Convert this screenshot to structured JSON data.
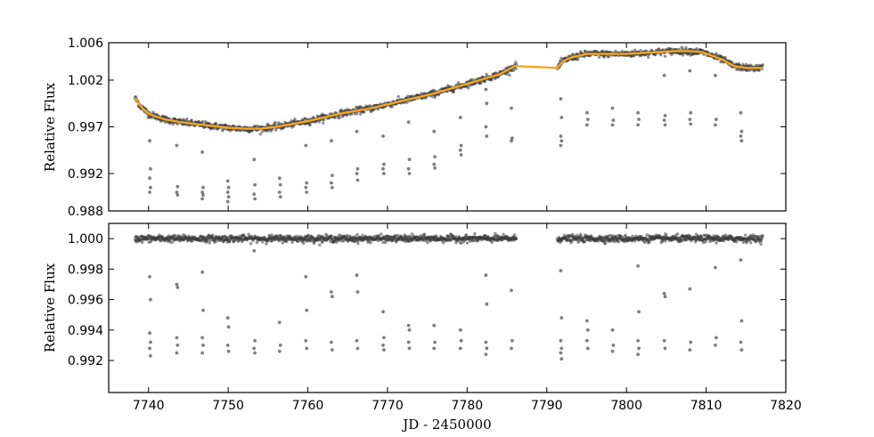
{
  "chart_data": [
    {
      "type": "scatter",
      "panel": "top",
      "xlabel": "",
      "ylabel": "Relative Flux",
      "xlim": [
        7735,
        7820
      ],
      "ylim": [
        0.988,
        1.006
      ],
      "yticks": [
        "0.988",
        "0.992",
        "0.997",
        "1.002",
        "1.006"
      ],
      "ytick_values": [
        0.988,
        0.992,
        0.997,
        1.002,
        1.006
      ],
      "point_color": "#3a3a3a",
      "trend_color": "#f5a623",
      "trend_curve": {
        "x": [
          7738.3,
          7739,
          7740,
          7742,
          7744,
          7746,
          7748,
          7750,
          7752,
          7754,
          7756,
          7758,
          7760,
          7762,
          7764,
          7766,
          7768,
          7770,
          7772,
          7774,
          7776,
          7778,
          7780,
          7782,
          7784,
          7786,
          7791.3,
          7792,
          7793,
          7794,
          7795,
          7796,
          7798,
          7800,
          7802,
          7804,
          7806,
          7808,
          7809.5,
          7810.5,
          7812,
          7813.5,
          7815,
          7817.1
        ],
        "y": [
          1.0001,
          0.9992,
          0.9984,
          0.9978,
          0.9975,
          0.9973,
          0.9971,
          0.9969,
          0.9968,
          0.9968,
          0.997,
          0.9973,
          0.9976,
          0.998,
          0.9984,
          0.9987,
          0.999,
          0.9994,
          0.9998,
          1.0002,
          1.0006,
          1.0011,
          1.0016,
          1.0021,
          1.0026,
          1.0035,
          1.0033,
          1.004,
          1.0044,
          1.0046,
          1.0048,
          1.0048,
          1.0048,
          1.0048,
          1.0049,
          1.005,
          1.0051,
          1.0051,
          1.005,
          1.0047,
          1.0042,
          1.0035,
          1.0033,
          1.0033
        ]
      },
      "transits": [
        {
          "x": 7740.2,
          "depths": [
            0.9955,
            0.9925,
            0.9915,
            0.9905,
            0.99
          ]
        },
        {
          "x": 7743.6,
          "depths": [
            0.995,
            0.9906,
            0.99,
            0.9897
          ]
        },
        {
          "x": 7746.8,
          "depths": [
            0.9943,
            0.9905,
            0.99,
            0.9897,
            0.9893
          ]
        },
        {
          "x": 7750.0,
          "depths": [
            0.9912,
            0.9905,
            0.99,
            0.9895,
            0.989
          ]
        },
        {
          "x": 7753.3,
          "depths": [
            0.9935,
            0.9908,
            0.9898,
            0.9893
          ]
        },
        {
          "x": 7756.5,
          "depths": [
            0.9915,
            0.9908,
            0.99,
            0.9895
          ]
        },
        {
          "x": 7759.8,
          "depths": [
            0.995,
            0.991,
            0.9905,
            0.99
          ]
        },
        {
          "x": 7763.0,
          "depths": [
            0.9955,
            0.9918,
            0.991,
            0.9905
          ]
        },
        {
          "x": 7766.2,
          "depths": [
            0.9965,
            0.9925,
            0.992,
            0.9913
          ]
        },
        {
          "x": 7769.5,
          "depths": [
            0.996,
            0.993,
            0.9925,
            0.992
          ]
        },
        {
          "x": 7772.7,
          "depths": [
            0.9975,
            0.9935,
            0.9925,
            0.992
          ]
        },
        {
          "x": 7775.9,
          "depths": [
            0.9965,
            0.9938,
            0.993,
            0.9926
          ]
        },
        {
          "x": 7779.2,
          "depths": [
            0.998,
            0.995,
            0.9945,
            0.994
          ]
        },
        {
          "x": 7782.4,
          "depths": [
            1.001,
            0.9995,
            0.997,
            0.996
          ]
        },
        {
          "x": 7785.6,
          "depths": [
            0.999,
            0.9958,
            0.9955
          ]
        },
        {
          "x": 7791.8,
          "depths": [
            1.0,
            0.998,
            0.996,
            0.9955,
            0.995
          ]
        },
        {
          "x": 7795.1,
          "depths": [
            0.9985,
            0.9978,
            0.9972
          ]
        },
        {
          "x": 7798.3,
          "depths": [
            0.999,
            0.9977,
            0.9972
          ]
        },
        {
          "x": 7801.5,
          "depths": [
            0.9985,
            0.9978,
            0.9972
          ]
        },
        {
          "x": 7804.8,
          "depths": [
            1.0025,
            0.9982,
            0.9977,
            0.9972
          ]
        },
        {
          "x": 7808.0,
          "depths": [
            1.003,
            0.9985,
            0.9978,
            0.9973
          ]
        },
        {
          "x": 7811.2,
          "depths": [
            1.0025,
            0.9978,
            0.9972
          ]
        },
        {
          "x": 7814.4,
          "depths": [
            0.9985,
            0.9965,
            0.996,
            0.9955
          ]
        }
      ]
    },
    {
      "type": "scatter",
      "panel": "bottom",
      "xlabel": "JD - 2450000",
      "ylabel": "Relative Flux",
      "xlim": [
        7735,
        7820
      ],
      "ylim": [
        0.9899,
        1.001
      ],
      "xticks": [
        "7740",
        "7750",
        "7760",
        "7770",
        "7780",
        "7790",
        "7800",
        "7810",
        "7820"
      ],
      "xtick_values": [
        7740,
        7750,
        7760,
        7770,
        7780,
        7790,
        7800,
        7810,
        7820
      ],
      "yticks": [
        "0.992",
        "0.994",
        "0.996",
        "0.998",
        "1.000"
      ],
      "ytick_values": [
        0.992,
        0.994,
        0.996,
        0.998,
        1.0
      ],
      "point_color": "#3a3a3a",
      "baseline": 1.0,
      "data_gap": [
        7786.2,
        7791.3
      ],
      "x_range": [
        7738.3,
        7817.1
      ],
      "transits": [
        {
          "x": 7740.2,
          "depths": [
            0.9975,
            0.996,
            0.9938,
            0.9932,
            0.9928,
            0.9923
          ]
        },
        {
          "x": 7743.6,
          "depths": [
            0.997,
            0.9968,
            0.9935,
            0.993,
            0.9925
          ]
        },
        {
          "x": 7746.8,
          "depths": [
            0.9978,
            0.9953,
            0.9935,
            0.993,
            0.9925
          ]
        },
        {
          "x": 7750.0,
          "depths": [
            0.9948,
            0.9942,
            0.993,
            0.9926
          ]
        },
        {
          "x": 7753.3,
          "depths": [
            0.9992,
            0.9933,
            0.9928,
            0.9925
          ]
        },
        {
          "x": 7756.5,
          "depths": [
            0.9945,
            0.993,
            0.9926
          ]
        },
        {
          "x": 7759.8,
          "depths": [
            0.9975,
            0.9953,
            0.9933,
            0.9928
          ]
        },
        {
          "x": 7763.0,
          "depths": [
            0.9965,
            0.9962,
            0.9932,
            0.9927
          ]
        },
        {
          "x": 7766.2,
          "depths": [
            0.9976,
            0.9965,
            0.9933,
            0.9928
          ]
        },
        {
          "x": 7769.5,
          "depths": [
            0.9952,
            0.9935,
            0.993,
            0.9927
          ]
        },
        {
          "x": 7772.7,
          "depths": [
            0.9943,
            0.994,
            0.9932,
            0.9928
          ]
        },
        {
          "x": 7775.9,
          "depths": [
            0.9943,
            0.9932,
            0.9928
          ]
        },
        {
          "x": 7779.2,
          "depths": [
            0.994,
            0.9933,
            0.9928
          ]
        },
        {
          "x": 7782.4,
          "depths": [
            0.9976,
            0.9957,
            0.9932,
            0.9928,
            0.9924
          ]
        },
        {
          "x": 7785.6,
          "depths": [
            0.9966,
            0.9933,
            0.9928
          ]
        },
        {
          "x": 7791.8,
          "depths": [
            0.9979,
            0.9948,
            0.9933,
            0.9928,
            0.9925,
            0.9921
          ]
        },
        {
          "x": 7795.1,
          "depths": [
            0.9946,
            0.994,
            0.9933,
            0.9928
          ]
        },
        {
          "x": 7798.3,
          "depths": [
            0.994,
            0.993,
            0.9926
          ]
        },
        {
          "x": 7801.5,
          "depths": [
            0.9982,
            0.9952,
            0.9933,
            0.9928,
            0.9924
          ]
        },
        {
          "x": 7804.8,
          "depths": [
            0.9964,
            0.9962,
            0.9933,
            0.9928
          ]
        },
        {
          "x": 7808.0,
          "depths": [
            0.9967,
            0.9932,
            0.9927
          ]
        },
        {
          "x": 7811.2,
          "depths": [
            0.9981,
            0.9935,
            0.993
          ]
        },
        {
          "x": 7814.4,
          "depths": [
            0.9986,
            0.9946,
            0.9932,
            0.9927
          ]
        }
      ]
    }
  ]
}
